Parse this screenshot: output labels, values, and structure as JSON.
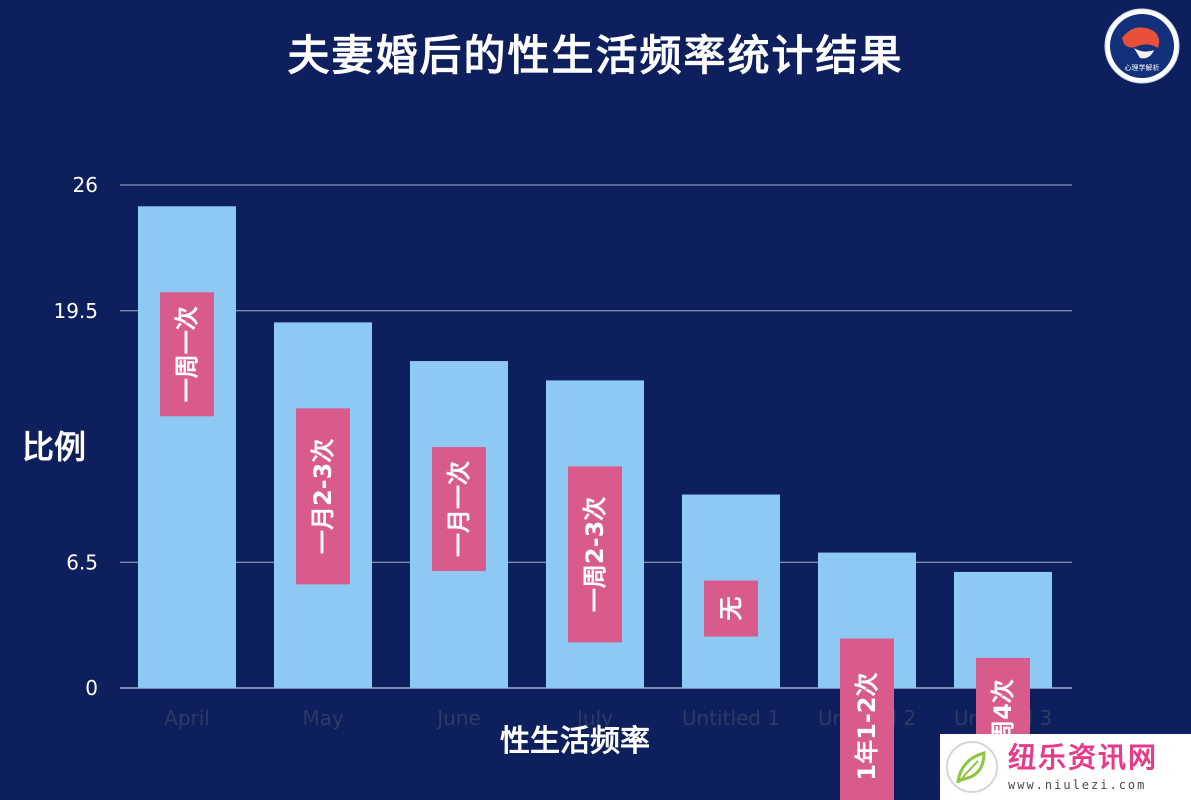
{
  "chart_data": {
    "type": "bar",
    "title": "夫妻婚后的性生活频率统计结果",
    "xlabel": "性生活频率",
    "ylabel": "比例",
    "yticks": [
      "0",
      "6.5",
      "19.5",
      "26"
    ],
    "ylim": [
      0,
      26
    ],
    "grid": true,
    "categories": [
      "April",
      "May",
      "June",
      "July",
      "Untitled 1",
      "Untitled 2",
      "Untitled 3"
    ],
    "values": [
      24.9,
      18.9,
      16.9,
      15.9,
      10.0,
      7.0,
      6.0
    ],
    "bar_labels": [
      "一周一次",
      "一月2-3次",
      "一月一次",
      "一周2-3次",
      "无",
      "1年1-2次",
      "1周4次"
    ],
    "colors": {
      "background": "#0d1f5c",
      "bar": "#8ec9f3",
      "label_box": "#d95b8c",
      "grid": "#c8d3ef"
    }
  },
  "logo": {
    "text": "心理学解析"
  },
  "watermark": {
    "name": "纽乐资讯网",
    "url": "www.niulezi.com"
  }
}
